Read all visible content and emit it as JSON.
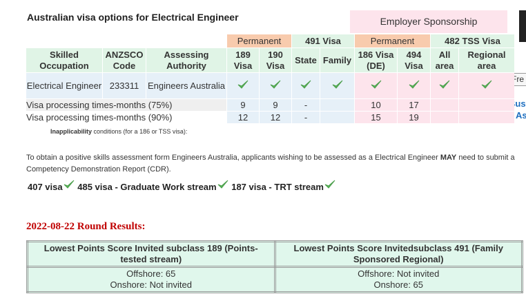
{
  "title": "Australian visa options for Electrical Engineer",
  "sponsorship_header": "Employer Sponsorship",
  "visa_table": {
    "group_headers": [
      "Permanent",
      "491 Visa",
      "Permanent",
      "482 TSS Visa"
    ],
    "columns": [
      "Skilled Occupation",
      "ANZSCO Code",
      "Assessing Authority",
      "189 Visa",
      "190 Visa",
      "State",
      "Family",
      "186 Visa (DE)",
      "494 Visa",
      "All area",
      "Regional area"
    ],
    "occupation_row": [
      "Electrical Engineer",
      "233311",
      "Engineers Australia"
    ],
    "processing_rows": [
      {
        "label": "Visa processing times-months (75%)",
        "v189": 9,
        "v190": 9,
        "state": "-",
        "v186": 10,
        "v494": 17
      },
      {
        "label": "Visa processing times-months (90%)",
        "v189": 12,
        "v190": 12,
        "state": "-",
        "v186": 15,
        "v494": 19
      }
    ]
  },
  "side": {
    "button": "Fre",
    "links": [
      "Bus",
      "As"
    ]
  },
  "inapplicability": {
    "bold": "Inapplicability",
    "rest": "conditions (for a 186 or TSS visa):"
  },
  "cdr_note": {
    "before": "To obtain a positive skills assessment form Engineers Australia, applicants wishing to be assessed as a Electrical Engineer",
    "bold": "MAY",
    "after": "need to submit a Competency Demonstration Report (CDR)."
  },
  "other_visas": [
    "407 visa",
    "485 visa - Graduate Work stream",
    "187 visa - TRT stream"
  ],
  "round_title": "2022-08-22 Round Results:",
  "results_table": {
    "headers": [
      "Lowest Points Score Invited subclass 189 (Points-tested stream)",
      "Lowest Points Score Invitedsubclass 491 (Family Sponsored Regional)"
    ],
    "cells": [
      [
        "Offshore: 65",
        "Onshore: Not invited"
      ],
      [
        "Offshore: Not invited",
        "Onshore: 65"
      ]
    ]
  }
}
